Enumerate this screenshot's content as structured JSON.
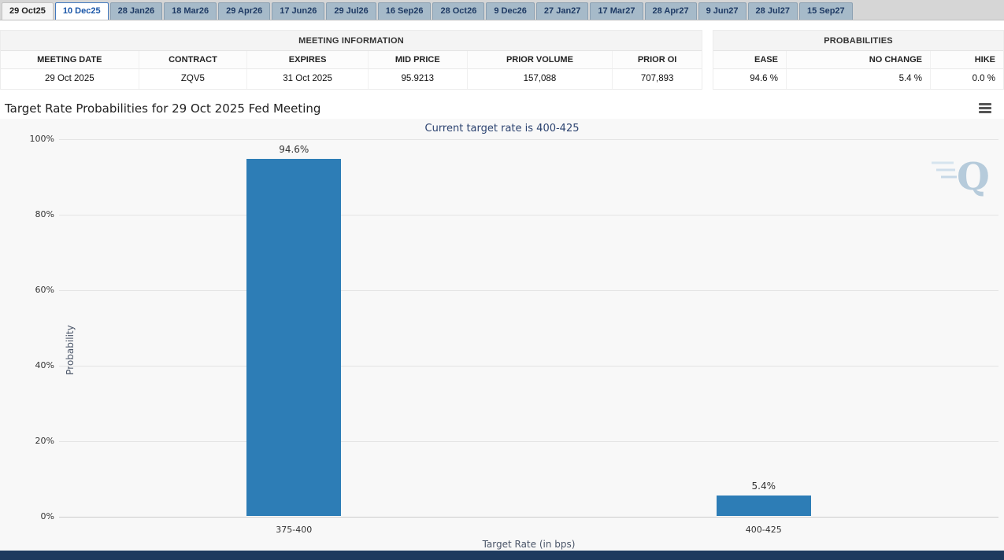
{
  "tabs": {
    "items": [
      {
        "label": "29 Oct25",
        "state": "first"
      },
      {
        "label": "10 Dec25",
        "state": "selected"
      },
      {
        "label": "28 Jan26",
        "state": "default"
      },
      {
        "label": "18 Mar26",
        "state": "default"
      },
      {
        "label": "29 Apr26",
        "state": "default"
      },
      {
        "label": "17 Jun26",
        "state": "default"
      },
      {
        "label": "29 Jul26",
        "state": "default"
      },
      {
        "label": "16 Sep26",
        "state": "default"
      },
      {
        "label": "28 Oct26",
        "state": "default"
      },
      {
        "label": "9 Dec26",
        "state": "default"
      },
      {
        "label": "27 Jan27",
        "state": "default"
      },
      {
        "label": "17 Mar27",
        "state": "default"
      },
      {
        "label": "28 Apr27",
        "state": "default"
      },
      {
        "label": "9 Jun27",
        "state": "default"
      },
      {
        "label": "28 Jul27",
        "state": "default"
      },
      {
        "label": "15 Sep27",
        "state": "default"
      }
    ]
  },
  "meeting_info": {
    "title": "MEETING INFORMATION",
    "columns": [
      "MEETING DATE",
      "CONTRACT",
      "EXPIRES",
      "MID PRICE",
      "PRIOR VOLUME",
      "PRIOR OI"
    ],
    "row": [
      "29 Oct 2025",
      "ZQV5",
      "31 Oct 2025",
      "95.9213",
      "157,088",
      "707,893"
    ]
  },
  "probabilities": {
    "title": "PROBABILITIES",
    "columns": [
      "EASE",
      "NO CHANGE",
      "HIKE"
    ],
    "row": [
      "94.6 %",
      "5.4 %",
      "0.0 %"
    ]
  },
  "chart_data": {
    "type": "bar",
    "title": "Target Rate Probabilities for 29 Oct 2025 Fed Meeting",
    "subtitle": "Current target rate is 400-425",
    "categories": [
      "375-400",
      "400-425"
    ],
    "values": [
      94.6,
      5.4
    ],
    "data_labels": [
      "94.6%",
      "5.4%"
    ],
    "xlabel": "Target Rate (in bps)",
    "ylabel": "Probability",
    "ylim": [
      0,
      100
    ],
    "yticks": [
      0,
      20,
      40,
      60,
      80,
      100
    ],
    "ytick_labels": [
      "0%",
      "20%",
      "40%",
      "60%",
      "80%",
      "100%"
    ],
    "grid": true,
    "legend": false,
    "bar_color": "#2d7db6"
  },
  "watermark": {
    "letter": "Q"
  },
  "colors": {
    "accent": "#2d7db6",
    "subtitle": "#2c4370",
    "footer": "#1e3a5e",
    "watermark_blue": "#bdd2e2"
  }
}
